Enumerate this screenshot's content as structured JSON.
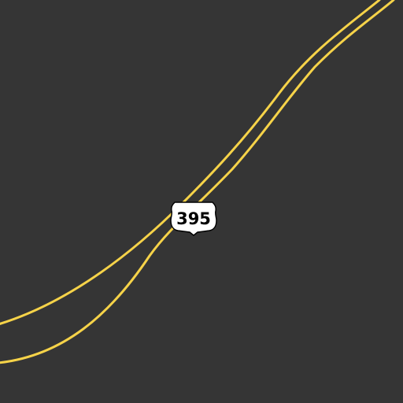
{
  "map": {
    "background_color": "#353535",
    "road_color": "#f6d349",
    "roads": [
      {
        "name": "us-395-carriageway-north",
        "type": "highway"
      },
      {
        "name": "us-395-carriageway-south",
        "type": "highway"
      }
    ],
    "shield": {
      "type": "us-route-shield",
      "icon": "us-highway-shield-icon",
      "route_number": "395",
      "fill_color": "#ffffff",
      "outline_color": "#000000",
      "text_color": "#000000"
    }
  }
}
